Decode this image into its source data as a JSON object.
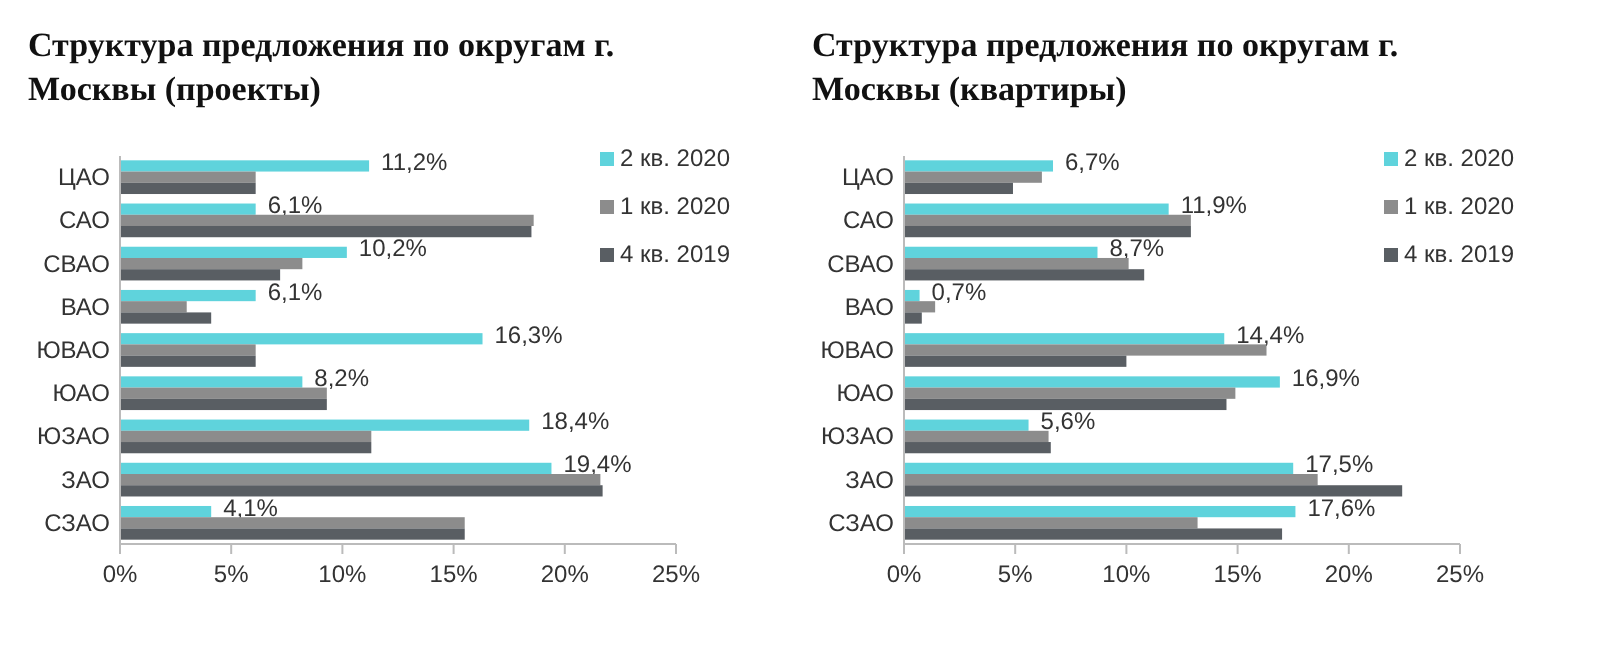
{
  "chart_data": [
    {
      "type": "bar",
      "orientation": "horizontal",
      "title": "Структура предложения по округам г. Москвы (проекты)",
      "categories": [
        "ЦАО",
        "САО",
        "СВАО",
        "ВАО",
        "ЮВАО",
        "ЮАО",
        "ЮЗАО",
        "ЗАО",
        "СЗАО"
      ],
      "xlim": [
        0,
        25
      ],
      "xticks": [
        {
          "value": 0,
          "label": "0%"
        },
        {
          "value": 5,
          "label": "5%"
        },
        {
          "value": 10,
          "label": "10%"
        },
        {
          "value": 15,
          "label": "15%"
        },
        {
          "value": 20,
          "label": "20%"
        },
        {
          "value": 25,
          "label": "25%"
        }
      ],
      "legend": "top right",
      "grid": false,
      "series": [
        {
          "name": "2 кв. 2020",
          "color": "#5fd3dc",
          "values": [
            11.2,
            6.1,
            10.2,
            6.1,
            16.3,
            8.2,
            18.4,
            19.4,
            4.1
          ],
          "value_labels": [
            "11,2%",
            "6,1%",
            "10,2%",
            "6,1%",
            "16,3%",
            "8,2%",
            "18,4%",
            "19,4%",
            "4,1%"
          ]
        },
        {
          "name": "1 кв. 2020",
          "color": "#8c8c8c",
          "values": [
            6.1,
            18.6,
            8.2,
            3.0,
            6.1,
            9.3,
            11.3,
            21.6,
            15.5
          ]
        },
        {
          "name": "4 кв. 2019",
          "color": "#595e63",
          "values": [
            6.1,
            18.5,
            7.2,
            4.1,
            6.1,
            9.3,
            11.3,
            21.7,
            15.5
          ]
        }
      ]
    },
    {
      "type": "bar",
      "orientation": "horizontal",
      "title": "Структура предложения по округам г. Москвы (квартиры)",
      "categories": [
        "ЦАО",
        "САО",
        "СВАО",
        "ВАО",
        "ЮВАО",
        "ЮАО",
        "ЮЗАО",
        "ЗАО",
        "СЗАО"
      ],
      "xlim": [
        0,
        25
      ],
      "xticks": [
        {
          "value": 0,
          "label": "0%"
        },
        {
          "value": 5,
          "label": "5%"
        },
        {
          "value": 10,
          "label": "10%"
        },
        {
          "value": 15,
          "label": "15%"
        },
        {
          "value": 20,
          "label": "20%"
        },
        {
          "value": 25,
          "label": "25%"
        }
      ],
      "legend": "top right",
      "grid": false,
      "series": [
        {
          "name": "2 кв. 2020",
          "color": "#5fd3dc",
          "values": [
            6.7,
            11.9,
            8.7,
            0.7,
            14.4,
            16.9,
            5.6,
            17.5,
            17.6
          ],
          "value_labels": [
            "6,7%",
            "11,9%",
            "8,7%",
            "0,7%",
            "14,4%",
            "16,9%",
            "5,6%",
            "17,5%",
            "17,6%"
          ]
        },
        {
          "name": "1 кв. 2020",
          "color": "#8c8c8c",
          "values": [
            6.2,
            12.9,
            10.1,
            1.4,
            16.3,
            14.9,
            6.5,
            18.6,
            13.2
          ]
        },
        {
          "name": "4 кв. 2019",
          "color": "#595e63",
          "values": [
            4.9,
            12.9,
            10.8,
            0.8,
            10.0,
            14.5,
            6.6,
            22.4,
            17.0
          ]
        }
      ]
    }
  ]
}
